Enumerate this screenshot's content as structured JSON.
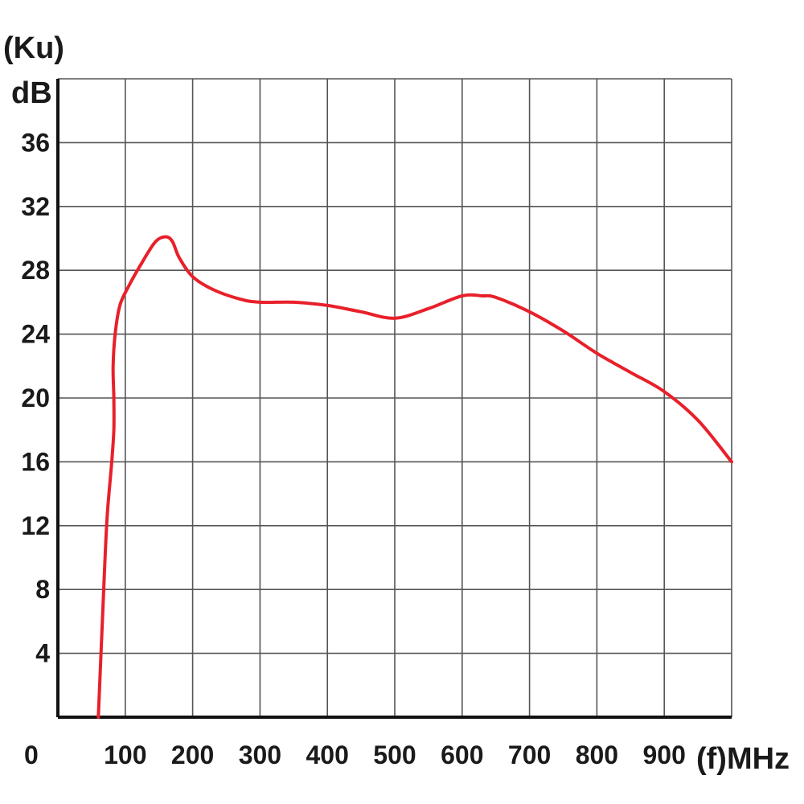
{
  "chart_data": {
    "type": "line",
    "y_unit_top": "(Ku)",
    "ylabel": "dB",
    "xlabel": "(f)MHz",
    "origin_label": "0",
    "xlim": [
      0,
      1000
    ],
    "ylim": [
      0,
      40
    ],
    "x_ticks": [
      100,
      200,
      300,
      400,
      500,
      600,
      700,
      800,
      900
    ],
    "x_tick_labels": [
      "100",
      "200",
      "300",
      "400",
      "500",
      "600",
      "700",
      "800",
      "900"
    ],
    "y_ticks": [
      4,
      8,
      12,
      16,
      20,
      24,
      28,
      32,
      36
    ],
    "y_tick_labels": [
      "4",
      "8",
      "12",
      "16",
      "20",
      "24",
      "28",
      "32",
      "36"
    ],
    "grid": true,
    "line_color": "#e8202a",
    "series": [
      {
        "x": [
          60,
          68,
          73,
          80,
          83,
          83,
          82,
          85,
          92,
          105,
          125,
          145,
          160,
          170,
          180,
          200,
          230,
          270,
          300,
          350,
          400,
          450,
          500,
          550,
          600,
          630,
          650,
          700,
          750,
          800,
          850,
          900,
          950,
          1000
        ],
        "y": [
          0,
          8,
          12.5,
          16,
          18,
          20,
          22,
          24,
          25.8,
          27,
          28.5,
          29.8,
          30.1,
          29.8,
          28.8,
          27.6,
          26.8,
          26.2,
          26.0,
          26.0,
          25.8,
          25.4,
          25.0,
          25.6,
          26.4,
          26.4,
          26.3,
          25.4,
          24.2,
          22.8,
          21.6,
          20.4,
          18.6,
          16.0
        ]
      }
    ]
  }
}
